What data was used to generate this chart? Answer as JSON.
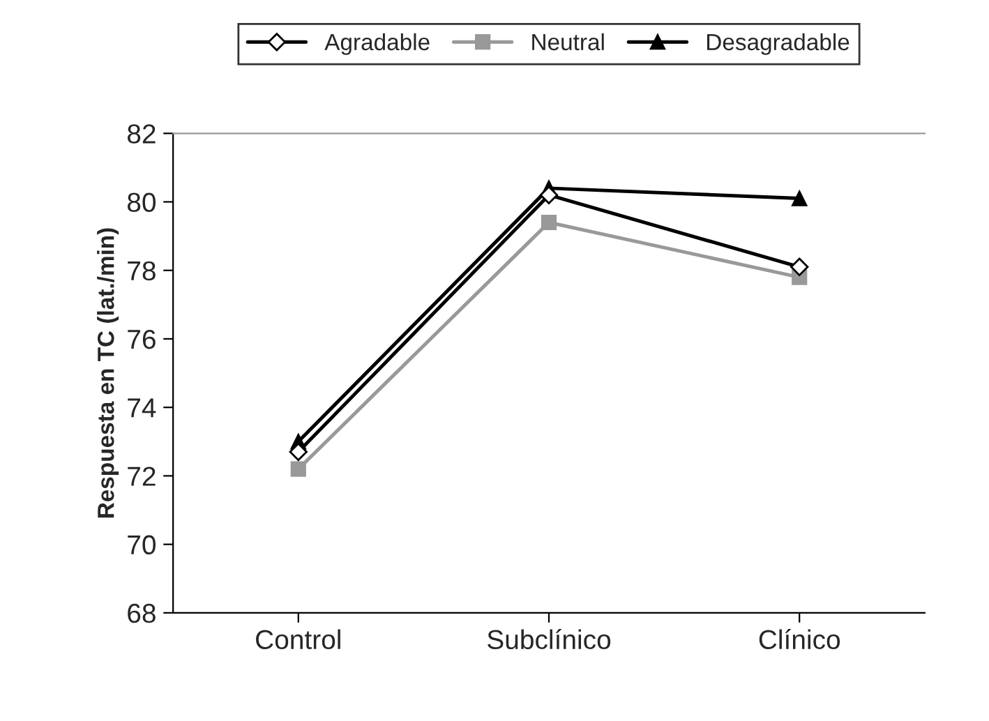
{
  "chart_data": {
    "type": "line",
    "ylabel": "Respuesta en TC (lat./min)",
    "categories": [
      "Control",
      "Subclínico",
      "Clínico"
    ],
    "series": [
      {
        "name": "Agradable",
        "color": "#000000",
        "marker": "diamond",
        "values": [
          72.7,
          80.2,
          78.1
        ]
      },
      {
        "name": "Neutral",
        "color": "#999999",
        "marker": "square",
        "values": [
          72.2,
          79.4,
          77.8
        ]
      },
      {
        "name": "Desagradable",
        "color": "#000000",
        "marker": "triangle",
        "values": [
          73.0,
          80.4,
          80.1
        ]
      }
    ],
    "ylim": [
      68,
      82
    ],
    "yticks": [
      68,
      70,
      72,
      74,
      76,
      78,
      80,
      82
    ],
    "grid": false,
    "legend": "top"
  }
}
